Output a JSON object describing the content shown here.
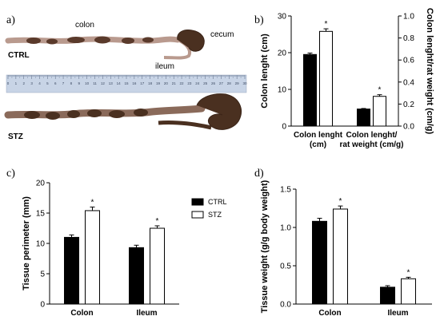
{
  "panels": {
    "a": "a)",
    "b": "b)",
    "c": "c)",
    "d": "d)"
  },
  "photo": {
    "label_colon": "colon",
    "label_cecum": "cecum",
    "label_ileum": "ileum",
    "label_ctrl": "CTRL",
    "label_stz": "STZ",
    "ruler_numbers": [
      "0",
      "1",
      "2",
      "3",
      "4",
      "5",
      "6",
      "7",
      "8",
      "9",
      "10",
      "11",
      "12",
      "13",
      "14",
      "15",
      "16",
      "17",
      "18",
      "19",
      "20",
      "21",
      "22",
      "23",
      "24",
      "25",
      "26",
      "27",
      "28",
      "29",
      "30"
    ]
  },
  "colors": {
    "ctrl": "#000000",
    "stz": "#ffffff",
    "tissue": "#4a3020",
    "ruler": "#c8d4e6"
  },
  "chart_data": [
    {
      "id": "b",
      "type": "bar",
      "categories": [
        "Colon lenght (cm)",
        "Colon lenght/ rat weight (cm/g)"
      ],
      "category_lines": [
        [
          "Colon lenght",
          "(cm)"
        ],
        [
          "Colon lenght/",
          "rat weight (cm/g)"
        ]
      ],
      "series": [
        {
          "name": "CTRL",
          "values": [
            19.5,
            0.155
          ],
          "errors": [
            0.4,
            0.005
          ]
        },
        {
          "name": "STZ",
          "values": [
            25.8,
            0.27
          ],
          "errors": [
            0.7,
            0.015
          ]
        }
      ],
      "significance": [
        "*",
        "*"
      ],
      "ylabel": "Colon lenght (cm)",
      "ylim": [
        0,
        30
      ],
      "yticks": [
        "0",
        "10",
        "20",
        "30"
      ],
      "y2label": "Colon lenght/rat weight (cm/g)",
      "y2lim": [
        0,
        1.0
      ],
      "y2ticks": [
        "0.0",
        "0.2",
        "0.4",
        "0.6",
        "0.8",
        "1.0"
      ]
    },
    {
      "id": "c",
      "type": "bar",
      "categories": [
        "Colon",
        "Ileum"
      ],
      "series": [
        {
          "name": "CTRL",
          "values": [
            11.0,
            9.3
          ],
          "errors": [
            0.4,
            0.4
          ]
        },
        {
          "name": "STZ",
          "values": [
            15.4,
            12.5
          ],
          "errors": [
            0.6,
            0.4
          ]
        }
      ],
      "significance": [
        "*",
        "*"
      ],
      "ylabel": "Tissue perimeter (mm)",
      "ylim": [
        0,
        20
      ],
      "yticks": [
        "0",
        "5",
        "10",
        "15",
        "20"
      ],
      "legend": [
        "CTRL",
        "STZ"
      ]
    },
    {
      "id": "d",
      "type": "bar",
      "categories": [
        "Colon",
        "Ileum"
      ],
      "series": [
        {
          "name": "CTRL",
          "values": [
            1.08,
            0.22
          ],
          "errors": [
            0.04,
            0.02
          ]
        },
        {
          "name": "STZ",
          "values": [
            1.24,
            0.33
          ],
          "errors": [
            0.04,
            0.02
          ]
        }
      ],
      "significance": [
        "*",
        "*"
      ],
      "ylabel": "Tissue weight (g/g body weight)",
      "ylim": [
        0,
        1.5
      ],
      "yticks": [
        "0.0",
        "0.5",
        "1.0",
        "1.5"
      ]
    }
  ]
}
